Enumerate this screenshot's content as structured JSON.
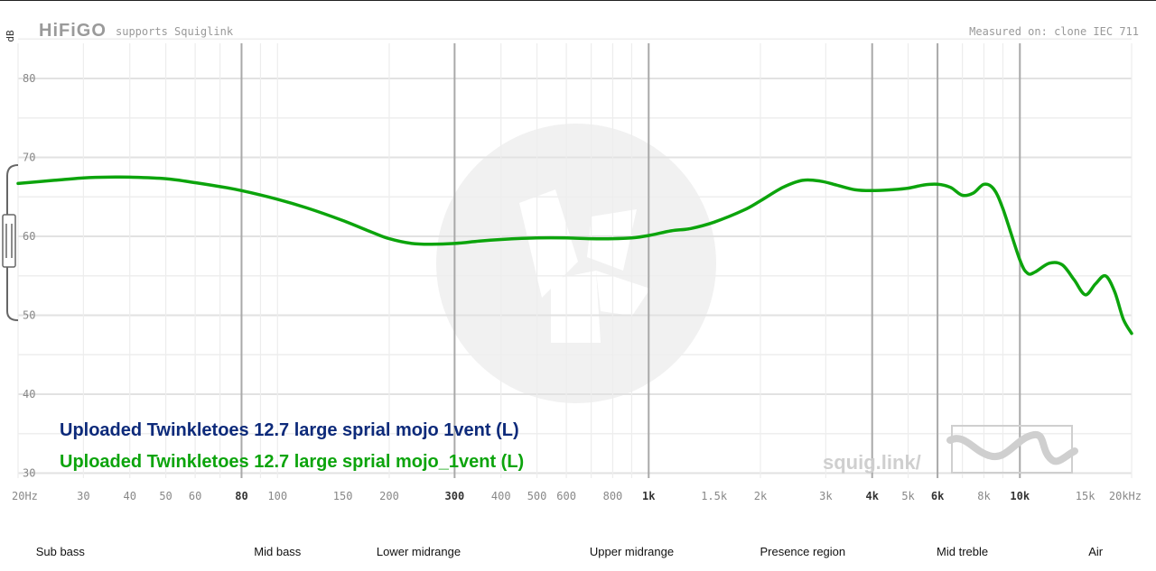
{
  "header": {
    "brand": "HiFiGO",
    "tagline": "supports Squiglink",
    "measured_on": "Measured on: clone IEC 711"
  },
  "watermark": {
    "site": "squig.link/"
  },
  "legend": [
    {
      "name": "Uploaded Twinkletoes 12.7 large sprial mojo 1vent (L)",
      "color": "#0d2a7a"
    },
    {
      "name": "Uploaded Twinkletoes 12.7 large sprial mojo_1vent (L)",
      "color": "#0ca40c"
    }
  ],
  "bands": [
    {
      "label": "Sub bass",
      "freq": 26
    },
    {
      "label": "Mid bass",
      "freq": 100
    },
    {
      "label": "Lower midrange",
      "freq": 240
    },
    {
      "label": "Upper midrange",
      "freq": 900
    },
    {
      "label": "Presence region",
      "freq": 2600
    },
    {
      "label": "Mid treble",
      "freq": 7000
    },
    {
      "label": "Air",
      "freq": 16000
    }
  ],
  "chart_data": {
    "type": "line",
    "xlabel": "",
    "ylabel": "dB",
    "xscale": "log",
    "xlim": [
      20,
      20000
    ],
    "ylim": [
      30,
      85
    ],
    "grid": true,
    "legend_position": "bottom-left",
    "y_ticks": [
      30,
      40,
      50,
      60,
      70,
      80
    ],
    "x_ticks": [
      {
        "f": 20,
        "label": "20Hz",
        "major": false
      },
      {
        "f": 30,
        "label": "30",
        "major": false
      },
      {
        "f": 40,
        "label": "40",
        "major": false
      },
      {
        "f": 50,
        "label": "50",
        "major": false
      },
      {
        "f": 60,
        "label": "60",
        "major": false
      },
      {
        "f": 80,
        "label": "80",
        "major": true
      },
      {
        "f": 100,
        "label": "100",
        "major": false
      },
      {
        "f": 150,
        "label": "150",
        "major": false
      },
      {
        "f": 200,
        "label": "200",
        "major": false
      },
      {
        "f": 300,
        "label": "300",
        "major": true
      },
      {
        "f": 400,
        "label": "400",
        "major": false
      },
      {
        "f": 500,
        "label": "500",
        "major": false
      },
      {
        "f": 600,
        "label": "600",
        "major": false
      },
      {
        "f": 800,
        "label": "800",
        "major": false
      },
      {
        "f": 1000,
        "label": "1k",
        "major": true
      },
      {
        "f": 1500,
        "label": "1.5k",
        "major": false
      },
      {
        "f": 2000,
        "label": "2k",
        "major": false
      },
      {
        "f": 3000,
        "label": "3k",
        "major": false
      },
      {
        "f": 4000,
        "label": "4k",
        "major": true
      },
      {
        "f": 5000,
        "label": "5k",
        "major": false
      },
      {
        "f": 6000,
        "label": "6k",
        "major": true
      },
      {
        "f": 8000,
        "label": "8k",
        "major": false
      },
      {
        "f": 10000,
        "label": "10k",
        "major": true
      },
      {
        "f": 15000,
        "label": "15k",
        "major": false
      },
      {
        "f": 20000,
        "label": "20kHz",
        "major": false
      }
    ],
    "series": [
      {
        "name": "Uploaded Twinkletoes 12.7 large sprial mojo_1vent (L)",
        "color": "#0ca40c",
        "x": [
          20,
          25,
          30,
          35,
          40,
          50,
          60,
          70,
          80,
          100,
          120,
          150,
          180,
          200,
          230,
          260,
          300,
          350,
          400,
          500,
          600,
          700,
          800,
          900,
          1000,
          1150,
          1300,
          1500,
          1800,
          2000,
          2300,
          2600,
          2900,
          3200,
          3600,
          4000,
          4500,
          5000,
          5500,
          6000,
          6500,
          7000,
          7500,
          8000,
          8500,
          9000,
          10000,
          10500,
          11000,
          12000,
          13000,
          14000,
          15000,
          16000,
          17000,
          18000,
          19000,
          20000
        ],
        "y": [
          66.7,
          67.1,
          67.4,
          67.5,
          67.5,
          67.3,
          66.8,
          66.3,
          65.8,
          64.7,
          63.6,
          62.0,
          60.5,
          59.7,
          59.1,
          59.0,
          59.1,
          59.4,
          59.6,
          59.8,
          59.8,
          59.7,
          59.7,
          59.8,
          60.1,
          60.7,
          61.0,
          61.8,
          63.3,
          64.5,
          66.2,
          67.1,
          67.0,
          66.5,
          65.9,
          65.8,
          65.9,
          66.1,
          66.5,
          66.6,
          66.2,
          65.2,
          65.5,
          66.6,
          66.0,
          63.5,
          57.0,
          55.3,
          55.5,
          56.6,
          56.4,
          54.5,
          52.6,
          54.0,
          55.0,
          53.0,
          49.5,
          47.7
        ]
      }
    ]
  }
}
